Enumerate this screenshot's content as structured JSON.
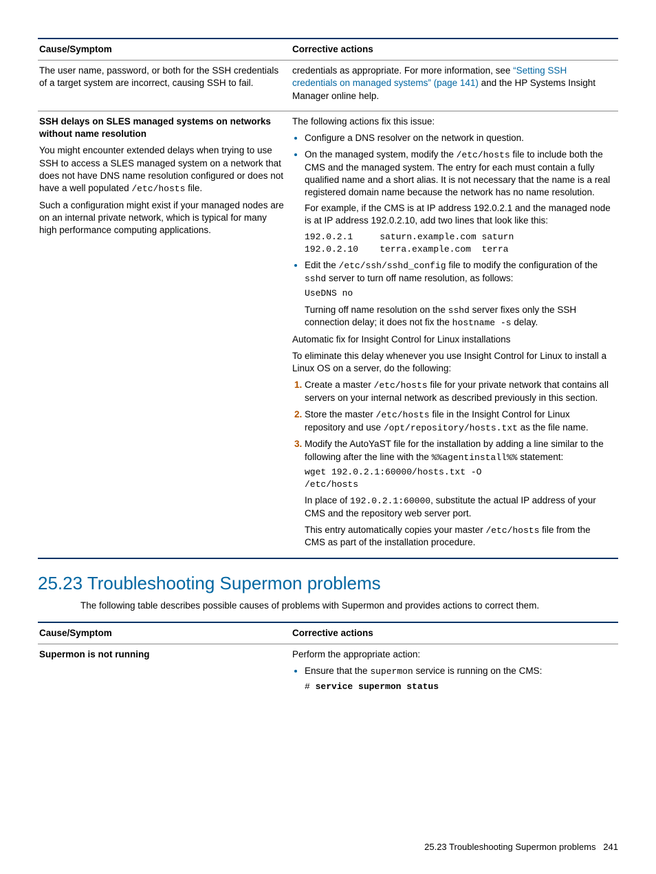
{
  "table1": {
    "head_left": "Cause/Symptom",
    "head_right": "Corrective actions",
    "r1_left": "The user name, password, or both for the SSH credentials of a target system are incorrect, causing SSH to fail.",
    "r1_right_a": "credentials as appropriate. For more information, see ",
    "r1_right_link": "“Setting SSH credentials on managed systems” (page 141)",
    "r1_right_b": " and the HP Systems Insight Manager online help.",
    "r2_l_h": "SSH delays on SLES managed systems on networks without name resolution",
    "r2_l_p1a": "You might encounter extended delays when trying to use SSH to access a SLES managed system on a network that does not have DNS name resolution configured or does not have a well populated ",
    "r2_l_p1code": "/etc/hosts",
    "r2_l_p1b": " file.",
    "r2_l_p2": "Such a configuration might exist if your managed nodes are on an internal private network, which is typical for many high performance computing applications.",
    "r2_r_intro": "The following actions fix this issue:",
    "r2_r_b1": "Configure a DNS resolver on the network in question.",
    "r2_r_b2a": "On the managed system, modify the ",
    "r2_r_b2code": "/etc/hosts",
    "r2_r_b2b": " file to include both the CMS and the managed system. The entry for each must contain a fully qualified name and a short alias. It is not necessary that the name is a real registered domain name because the network has no name resolution.",
    "r2_r_b2_expl": "For example, if the CMS is at IP address 192.0.2.1 and the managed node is at IP address 192.0.2.10, add two lines that look like this:",
    "r2_r_b2_code": "192.0.2.1     saturn.example.com saturn\n192.0.2.10    terra.example.com  terra",
    "r2_r_b3a": "Edit the ",
    "r2_r_b3code1": "/etc/ssh/sshd_config",
    "r2_r_b3b": " file to modify the configuration of the ",
    "r2_r_b3code2": "sshd",
    "r2_r_b3c": " server to turn off name resolution, as follows:",
    "r2_r_b3_code": "UseDNS no",
    "r2_r_b3d": "Turning off name resolution on the ",
    "r2_r_b3code3": "sshd",
    "r2_r_b3e": " server fixes only the SSH connection delay; it does not fix the ",
    "r2_r_b3code4": "hostname -s",
    "r2_r_b3f": " delay.",
    "r2_r_auto_h": "Automatic fix for Insight Control for Linux installations",
    "r2_r_auto_p": "To eliminate this delay whenever you use Insight Control for Linux to install a Linux OS on a server, do the following:",
    "r2_r_n1a": "Create a master ",
    "r2_r_n1code": "/etc/hosts",
    "r2_r_n1b": " file for your private network that contains all servers on your internal network as described previously in this section.",
    "r2_r_n2a": "Store the master ",
    "r2_r_n2code1": "/etc/hosts",
    "r2_r_n2b": " file in the Insight Control for Linux repository and use ",
    "r2_r_n2code2": "/opt/repository/hosts.txt",
    "r2_r_n2c": " as the file name.",
    "r2_r_n3a": "Modify the AutoYaST file for the installation by adding a line similar to the following after the line with the ",
    "r2_r_n3code1": "%%agentinstall%%",
    "r2_r_n3b": " statement:",
    "r2_r_n3_code": "wget 192.0.2.1:60000/hosts.txt -O\n/etc/hosts",
    "r2_r_n3c": "In place of ",
    "r2_r_n3code2": "192.0.2.1:60000",
    "r2_r_n3d": ", substitute the actual IP address of your CMS and the repository web server port.",
    "r2_r_n3e": "This entry automatically copies your master ",
    "r2_r_n3code3": "/etc/hosts",
    "r2_r_n3f": " file from the CMS as part of the installation procedure."
  },
  "section": {
    "title": "25.23 Troubleshooting Supermon problems",
    "intro": "The following table describes possible causes of problems with Supermon and provides actions to correct them."
  },
  "table2": {
    "head_left": "Cause/Symptom",
    "head_right": "Corrective actions",
    "r1_left": "Supermon is not running",
    "r1_r_p": "Perform the appropriate action:",
    "r1_r_b1a": "Ensure that the ",
    "r1_r_b1code": "supermon",
    "r1_r_b1b": " service is running on the CMS:",
    "r1_r_b1_code": "# service supermon status"
  },
  "footer": {
    "text": "25.23 Troubleshooting Supermon problems",
    "num": "241"
  }
}
